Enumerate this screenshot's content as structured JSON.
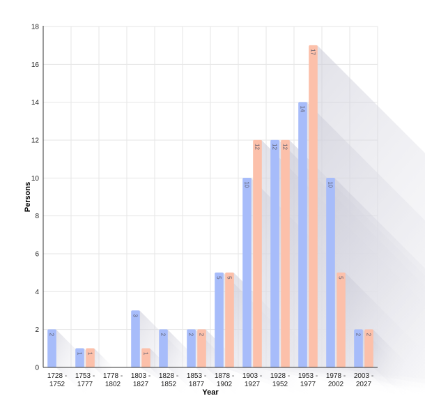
{
  "chart_data": {
    "type": "bar",
    "categories": [
      [
        "1728 -",
        "1752"
      ],
      [
        "1753 -",
        "1777"
      ],
      [
        "1778 -",
        "1802"
      ],
      [
        "1803 -",
        "1827"
      ],
      [
        "1828 -",
        "1852"
      ],
      [
        "1853 -",
        "1877"
      ],
      [
        "1878 -",
        "1902"
      ],
      [
        "1903 -",
        "1927"
      ],
      [
        "1928 -",
        "1952"
      ],
      [
        "1953 -",
        "1977"
      ],
      [
        "1978 -",
        "2002"
      ],
      [
        "2003 -",
        "2027"
      ]
    ],
    "series": [
      {
        "color": "#a7bcfa",
        "values": [
          2,
          1,
          0,
          3,
          2,
          2,
          5,
          10,
          12,
          14,
          10,
          2
        ]
      },
      {
        "color": "#fcc0aa",
        "values": [
          0,
          1,
          0,
          1,
          0,
          2,
          5,
          12,
          12,
          17,
          5,
          2
        ]
      }
    ],
    "xlabel": "Year",
    "ylabel": "Persons",
    "ylim": [
      0,
      18
    ],
    "yticks": [
      "0",
      "2",
      "4",
      "6",
      "8",
      "10",
      "12",
      "14",
      "16",
      "18"
    ],
    "grid": true,
    "legend": "none"
  }
}
